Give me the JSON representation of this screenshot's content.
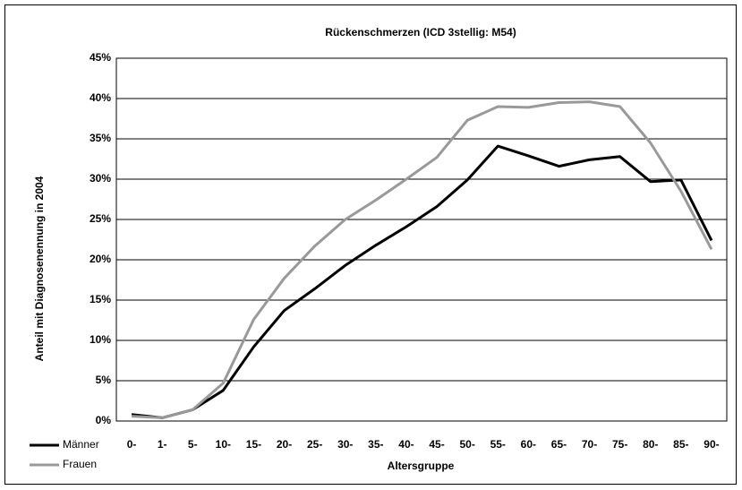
{
  "chart_data": {
    "type": "line",
    "title": "Rückenschmerzen (ICD 3stellig: M54)",
    "x_label": "Altersgruppe",
    "y_label": "Anteil mit Diagnosenennung in 2004",
    "categories": [
      "0-",
      "1-",
      "5-",
      "10-",
      "15-",
      "20-",
      "25-",
      "30-",
      "35-",
      "40-",
      "45-",
      "50-",
      "55-",
      "60-",
      "65-",
      "70-",
      "75-",
      "80-",
      "85-",
      "90-"
    ],
    "series": [
      {
        "name": "Männer",
        "color": "#000000",
        "values": [
          0.8,
          0.4,
          1.4,
          3.8,
          9.2,
          13.7,
          16.4,
          19.3,
          21.8,
          24.1,
          26.6,
          29.9,
          34.1,
          32.9,
          31.6,
          32.4,
          32.8,
          29.7,
          29.9,
          22.4
        ]
      },
      {
        "name": "Frauen",
        "color": "#999999",
        "values": [
          0.6,
          0.4,
          1.4,
          4.7,
          12.6,
          17.7,
          21.7,
          25.0,
          27.4,
          30.0,
          32.7,
          37.3,
          39.0,
          38.9,
          39.5,
          39.6,
          39.0,
          34.5,
          28.5,
          21.3
        ]
      }
    ],
    "ylim": [
      0,
      45
    ],
    "yticks": [
      {
        "value": 0,
        "label": "0%"
      },
      {
        "value": 5,
        "label": "5%"
      },
      {
        "value": 10,
        "label": "10%"
      },
      {
        "value": 15,
        "label": "15%"
      },
      {
        "value": 20,
        "label": "20%"
      },
      {
        "value": 25,
        "label": "25%"
      },
      {
        "value": 30,
        "label": "30%"
      },
      {
        "value": 35,
        "label": "35%"
      },
      {
        "value": 40,
        "label": "40%"
      },
      {
        "value": 45,
        "label": "45%"
      }
    ],
    "grid": true,
    "legend": "bottom-left"
  }
}
